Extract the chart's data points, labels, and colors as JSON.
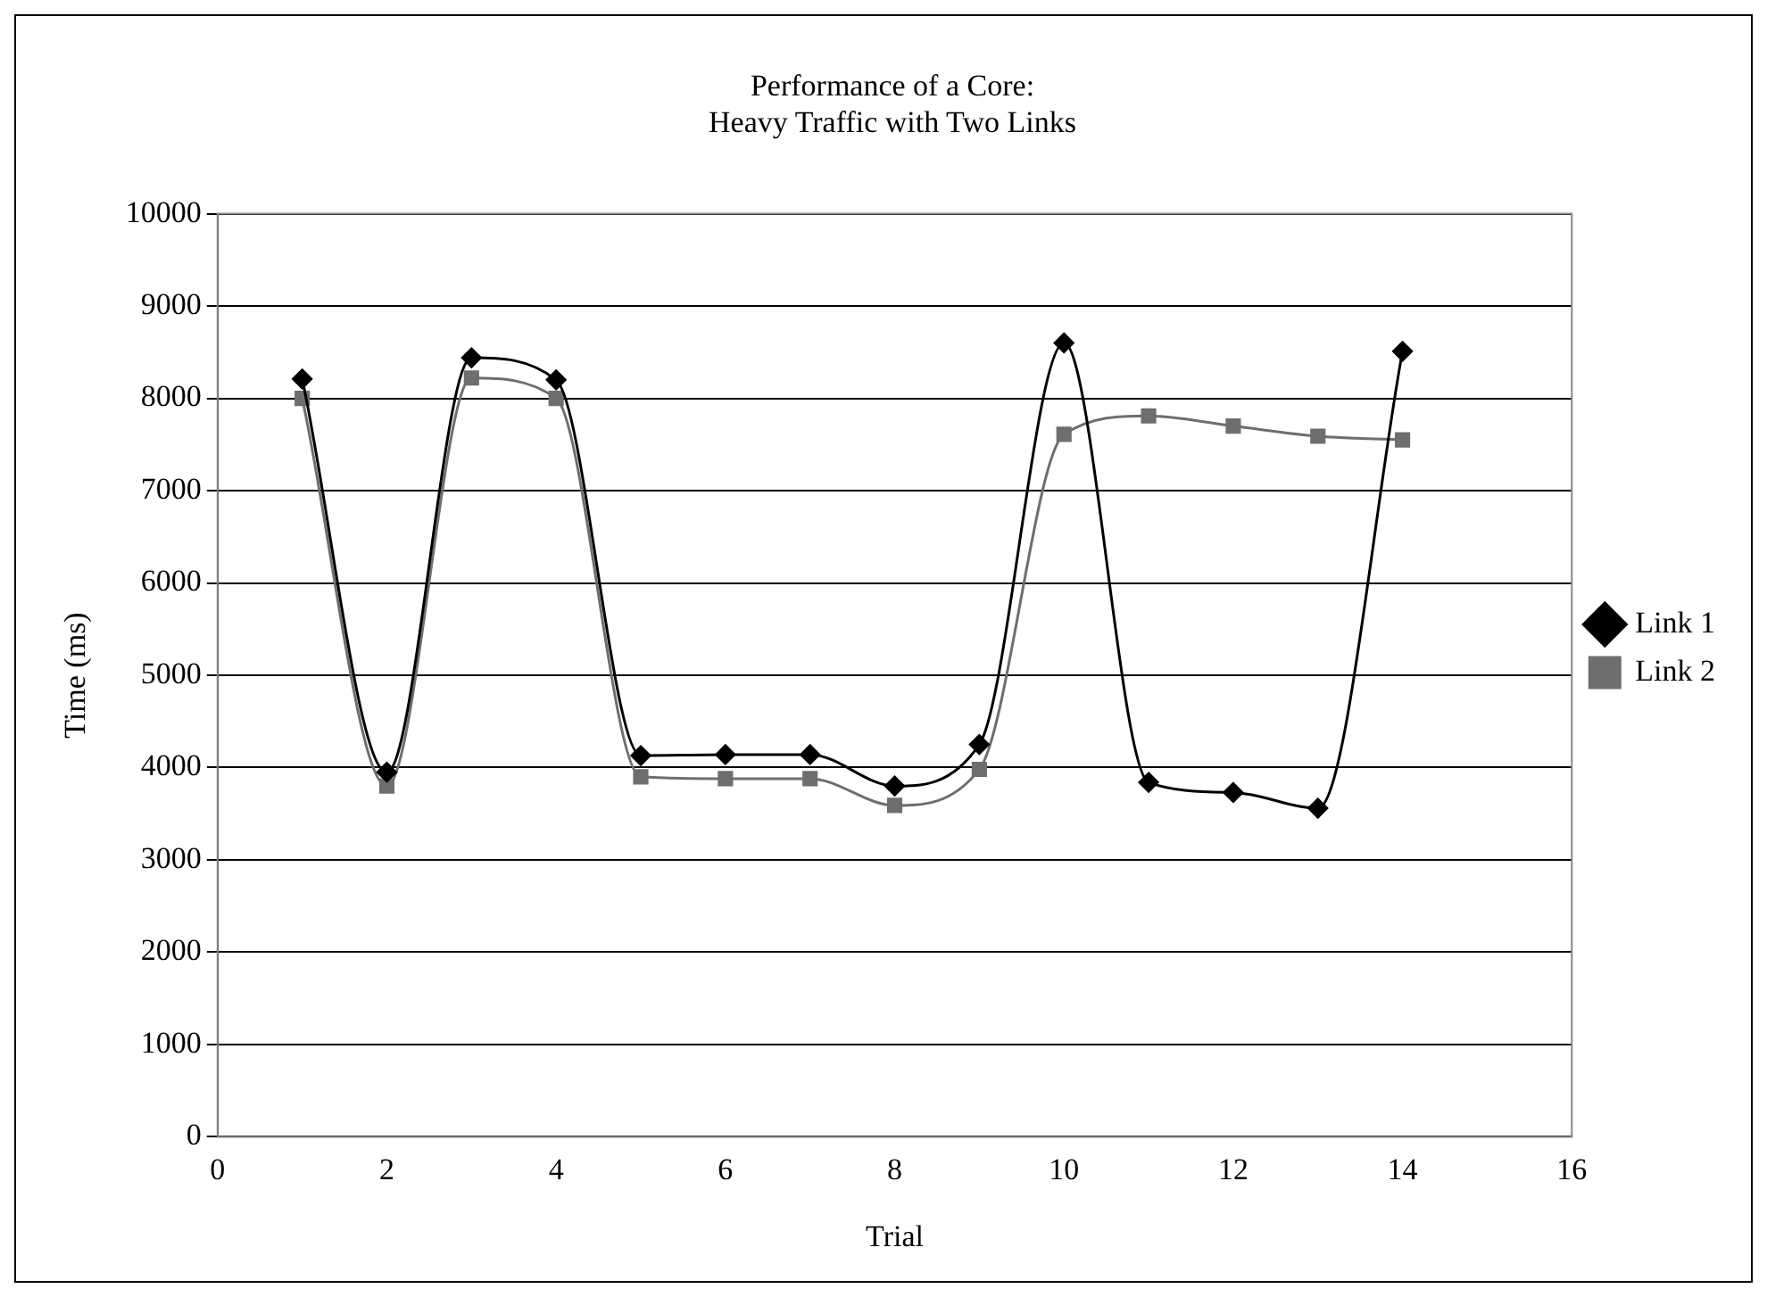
{
  "chart_data": {
    "type": "line",
    "title": "Performance of a Core:\nHeavy Traffic with Two Links",
    "xlabel": "Trial",
    "ylabel": "Time (ms)",
    "x": [
      1,
      2,
      3,
      4,
      5,
      6,
      7,
      8,
      9,
      10,
      11,
      12,
      13,
      14
    ],
    "series": [
      {
        "name": "Link 1",
        "color": "#000000",
        "marker": "diamond",
        "values": [
          8210,
          3950,
          8440,
          8200,
          4130,
          4140,
          4140,
          3800,
          4250,
          8600,
          3840,
          3730,
          3560,
          8510
        ]
      },
      {
        "name": "Link 2",
        "color": "#6e6e6e",
        "marker": "square",
        "values": [
          8000,
          3800,
          8220,
          8000,
          3900,
          3880,
          3880,
          3590,
          3980,
          7610,
          7810,
          7700,
          7590,
          7550
        ]
      }
    ],
    "xlim": [
      0,
      16
    ],
    "xticks": [
      0,
      2,
      4,
      6,
      8,
      10,
      12,
      14,
      16
    ],
    "ylim": [
      0,
      10000
    ],
    "yticks": [
      0,
      1000,
      2000,
      3000,
      4000,
      5000,
      6000,
      7000,
      8000,
      9000,
      10000
    ],
    "grid": "y",
    "legend": "right",
    "line_style": "solid"
  }
}
